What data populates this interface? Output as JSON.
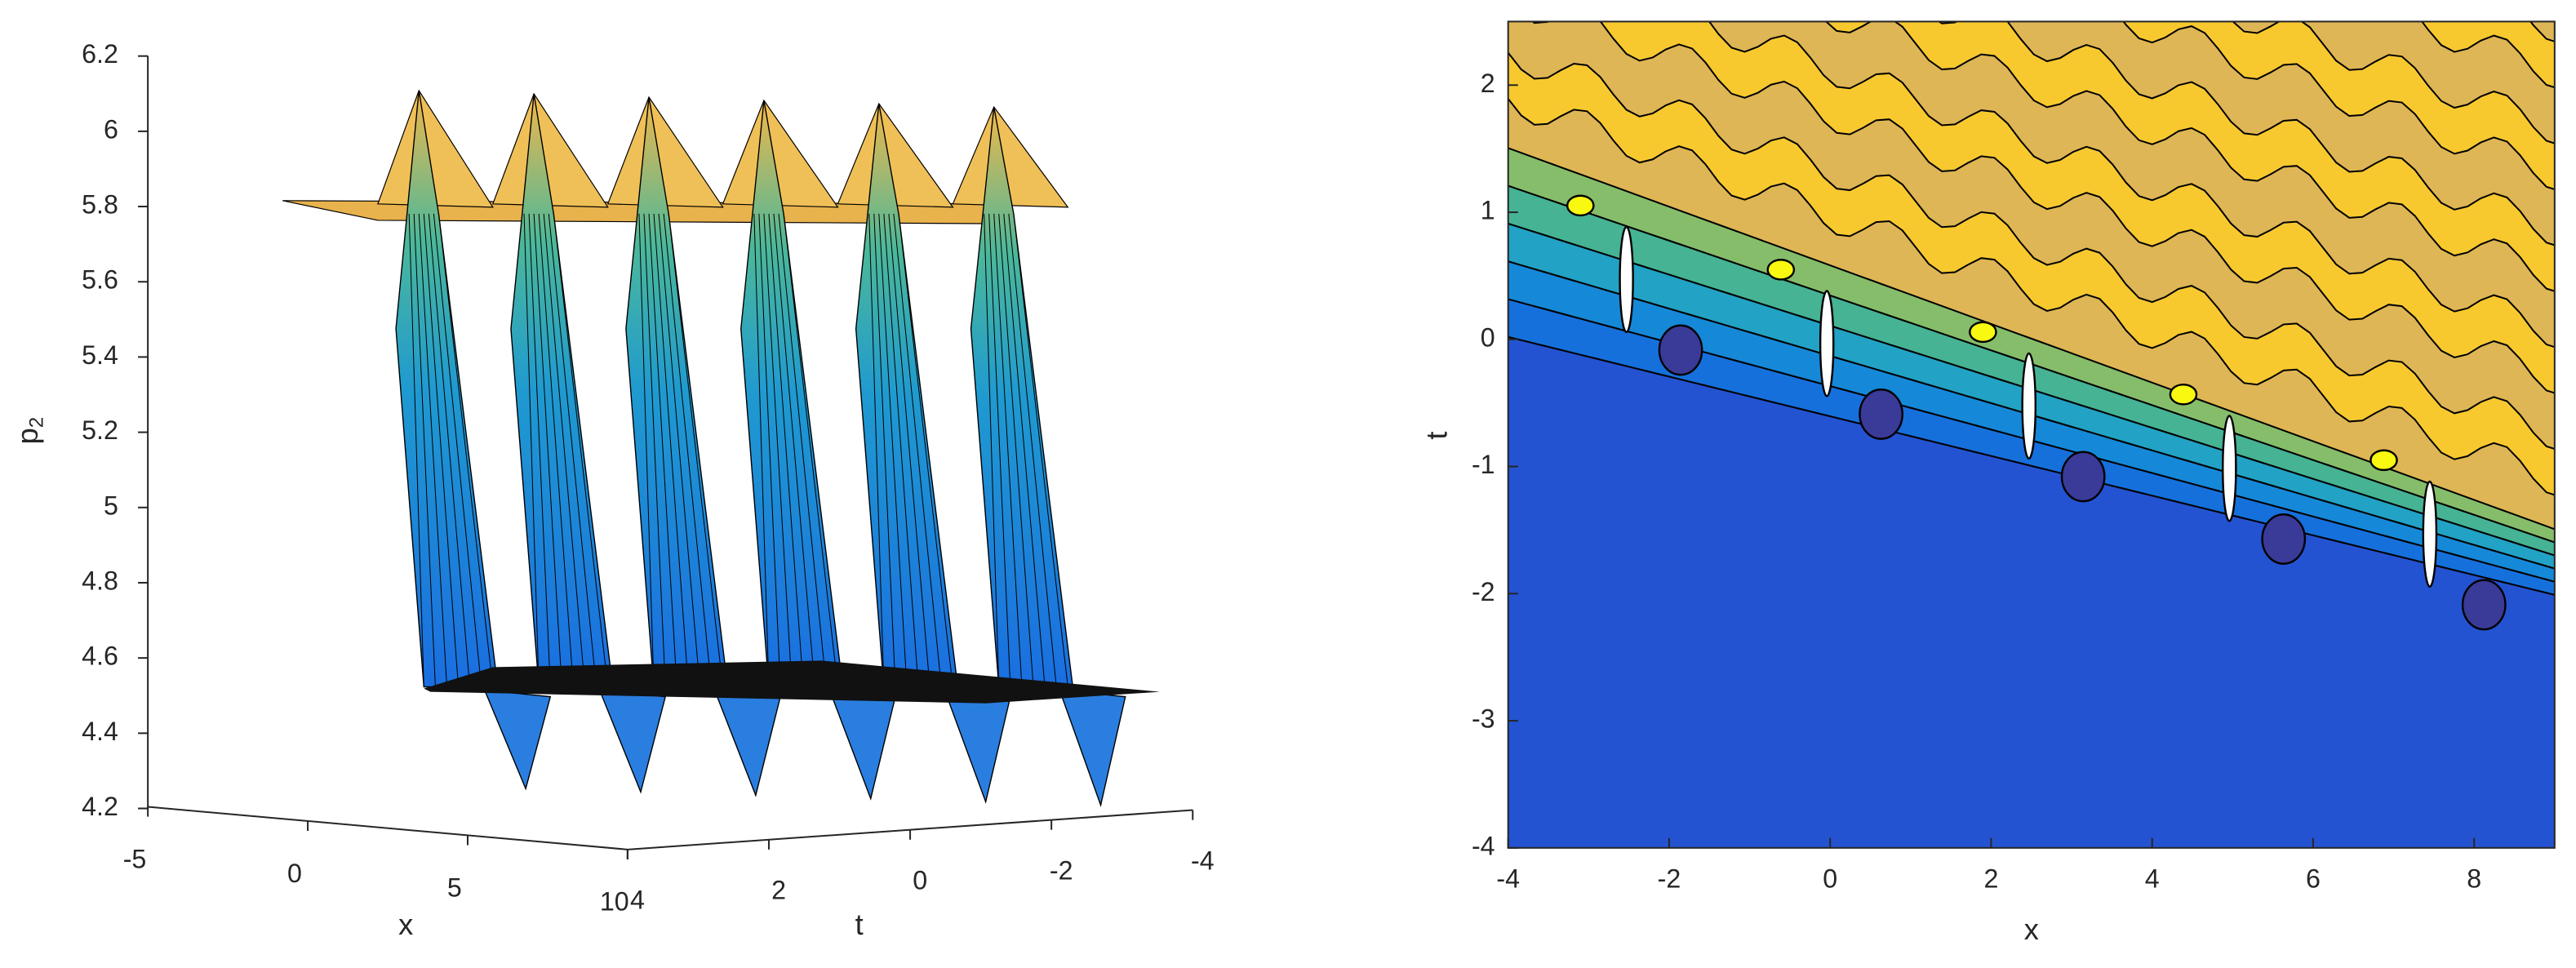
{
  "chart_data": [
    {
      "type": "surface3d",
      "xlabel": "x",
      "ylabel": "t",
      "zlabel": "p",
      "zlabel_sub": "2",
      "xlim": [
        -5,
        10
      ],
      "xticks": [
        -5,
        0,
        5,
        10
      ],
      "ylim": [
        -4,
        4
      ],
      "yticks": [
        4,
        2,
        0,
        -2,
        -4
      ],
      "zlim": [
        4.2,
        6.2
      ],
      "zticks": [
        4.2,
        4.4,
        4.6,
        4.8,
        5,
        5.2,
        5.4,
        5.6,
        5.8,
        6,
        6.2
      ]
    },
    {
      "type": "contour",
      "xlabel": "x",
      "ylabel": "t",
      "xlim": [
        -4,
        9
      ],
      "xticks": [
        -4,
        -2,
        0,
        2,
        4,
        6,
        8
      ],
      "ylim": [
        -4,
        2.5
      ],
      "yticks": [
        -4,
        -3,
        -2,
        -1,
        0,
        1,
        2
      ]
    }
  ]
}
